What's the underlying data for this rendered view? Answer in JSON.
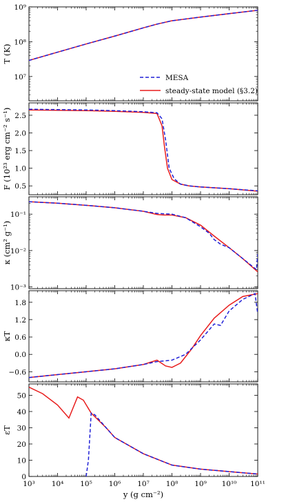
{
  "chart_data": {
    "type": "line",
    "xlabel": "y (g cm⁻²)",
    "x_scale": "log",
    "xlim": [
      1000,
      100000000000
    ],
    "x_ticks": [
      1000,
      10000,
      100000,
      1000000,
      10000000,
      100000000,
      1000000000,
      10000000000,
      100000000000
    ],
    "x_tick_labels": [
      "10³",
      "10⁴",
      "10⁵",
      "10⁶",
      "10⁷",
      "10⁸",
      "10⁹",
      "10¹⁰",
      "10¹¹"
    ],
    "legend": {
      "placement": "inside lower-right of top panel",
      "entries": [
        "MESA",
        "steady-state model (§3.2)"
      ]
    },
    "series_style": [
      {
        "name": "MESA",
        "color": "#1f1fd6",
        "dash": "dashed"
      },
      {
        "name": "steady-state model (§3.2)",
        "color": "#e81c1c",
        "dash": "solid"
      }
    ],
    "panels": [
      {
        "id": "T",
        "ylabel": "T (K)",
        "y_scale": "log",
        "ylim": [
          2000000,
          1000000000
        ],
        "y_ticks": [
          10000000,
          100000000,
          1000000000
        ],
        "y_tick_labels": [
          "10⁷",
          "10⁸",
          "10⁹"
        ],
        "series": [
          {
            "name": "MESA",
            "x": [
              1000,
              10000,
              100000,
              1000000,
              10000000,
              30000000,
              100000000,
              1000000000,
              10000000000,
              100000000000
            ],
            "y": [
              29000000,
              50000000,
              86000000,
              145000000,
              250000000,
              320000000,
              400000000,
              510000000,
              640000000,
              800000000
            ]
          },
          {
            "name": "steady-state model (§3.2)",
            "x": [
              1000,
              10000,
              100000,
              1000000,
              10000000,
              30000000,
              100000000,
              1000000000,
              10000000000,
              100000000000
            ],
            "y": [
              29000000,
              50000000,
              86000000,
              145000000,
              250000000,
              320000000,
              400000000,
              510000000,
              640000000,
              800000000
            ]
          }
        ]
      },
      {
        "id": "F",
        "ylabel": "F (10²³ erg cm⁻² s⁻¹)",
        "y_scale": "linear",
        "ylim": [
          0.25,
          2.85
        ],
        "y_ticks": [
          0.5,
          1.0,
          1.5,
          2.0,
          2.5
        ],
        "y_tick_labels": [
          "0.5",
          "1.0",
          "1.5",
          "2.0",
          "2.5"
        ],
        "series": [
          {
            "name": "MESA",
            "x": [
              1000,
              10000,
              100000,
              1000000,
              10000000,
              30000000,
              45000000,
              60000000,
              80000000,
              120000000,
              200000000,
              400000000,
              1000000000,
              10000000000,
              100000000000
            ],
            "y": [
              2.67,
              2.66,
              2.65,
              2.63,
              2.6,
              2.57,
              2.4,
              1.8,
              1.0,
              0.7,
              0.55,
              0.5,
              0.47,
              0.42,
              0.36
            ]
          },
          {
            "name": "steady-state model (§3.2)",
            "x": [
              1000,
              10000,
              100000,
              1000000,
              10000000,
              30000000,
              45000000,
              55000000,
              70000000,
              100000000,
              200000000,
              400000000,
              1000000000,
              10000000000,
              100000000000
            ],
            "y": [
              2.65,
              2.64,
              2.63,
              2.61,
              2.58,
              2.55,
              2.2,
              1.6,
              1.0,
              0.68,
              0.55,
              0.5,
              0.47,
              0.42,
              0.35
            ]
          }
        ]
      },
      {
        "id": "kappa",
        "ylabel": "κ (cm² g⁻¹)",
        "y_scale": "log",
        "ylim": [
          0.0009,
          0.3
        ],
        "y_ticks": [
          0.001,
          0.01,
          0.1
        ],
        "y_tick_labels": [
          "10⁻³",
          "10⁻²",
          "10⁻¹"
        ],
        "series": [
          {
            "name": "MESA",
            "x": [
              1000,
              10000,
              100000,
              1000000,
              10000000,
              30000000,
              100000000,
              300000000,
              1000000000,
              2000000000,
              3000000000,
              5000000000,
              10000000000,
              30000000000,
              90000000000,
              100000000000
            ],
            "y": [
              0.22,
              0.2,
              0.175,
              0.15,
              0.12,
              0.105,
              0.1,
              0.08,
              0.045,
              0.03,
              0.02,
              0.015,
              0.012,
              0.006,
              0.003,
              0.008
            ]
          },
          {
            "name": "steady-state model (§3.2)",
            "x": [
              1000,
              10000,
              100000,
              1000000,
              10000000,
              30000000,
              50000000,
              100000000,
              300000000,
              1000000000,
              3000000000,
              10000000000,
              30000000000,
              100000000000
            ],
            "y": [
              0.22,
              0.2,
              0.175,
              0.15,
              0.12,
              0.098,
              0.095,
              0.095,
              0.08,
              0.05,
              0.025,
              0.012,
              0.006,
              0.0026
            ]
          }
        ]
      },
      {
        "id": "kappaT",
        "ylabel": "κT",
        "y_scale": "linear",
        "ylim": [
          -0.95,
          2.2
        ],
        "y_ticks": [
          -0.6,
          0.0,
          0.6,
          1.2,
          1.8
        ],
        "y_tick_labels": [
          "−0.6",
          "0.0",
          "0.6",
          "1.2",
          "1.8"
        ],
        "series": [
          {
            "name": "MESA",
            "x": [
              1000,
              10000,
              100000,
              1000000,
              10000000,
              30000000,
              100000000,
              300000000,
              1000000000,
              3000000000,
              5000000000,
              10000000000,
              30000000000,
              80000000000,
              100000000000
            ],
            "y": [
              -0.8,
              -0.7,
              -0.6,
              -0.5,
              -0.35,
              -0.25,
              -0.2,
              0.0,
              0.5,
              1.05,
              1.0,
              1.5,
              1.9,
              2.1,
              1.4
            ]
          },
          {
            "name": "steady-state model (§3.2)",
            "x": [
              1000,
              10000,
              100000,
              1000000,
              10000000,
              30000000,
              60000000,
              100000000,
              200000000,
              500000000,
              1000000000,
              3000000000,
              10000000000,
              30000000000,
              100000000000
            ],
            "y": [
              -0.8,
              -0.7,
              -0.6,
              -0.5,
              -0.35,
              -0.2,
              -0.4,
              -0.45,
              -0.3,
              0.2,
              0.65,
              1.25,
              1.7,
              2.0,
              2.1
            ]
          }
        ]
      },
      {
        "id": "epsT",
        "ylabel": "εT",
        "y_scale": "linear",
        "ylim": [
          0,
          57
        ],
        "y_ticks": [
          0,
          10,
          20,
          30,
          40,
          50
        ],
        "y_tick_labels": [
          "0",
          "10",
          "20",
          "30",
          "40",
          "50"
        ],
        "series": [
          {
            "name": "MESA",
            "x": [
              100000,
              120000,
              140000,
              150000,
              200000,
              500000,
              1000000,
              10000000,
              100000000,
              1000000000,
              10000000000,
              100000000000
            ],
            "y": [
              0,
              10,
              30,
              39,
              38,
              30,
              24,
              14,
              7,
              4.5,
              3,
              1.5
            ]
          },
          {
            "name": "steady-state model (§3.2)",
            "x": [
              1000,
              3000,
              10000,
              25000,
              50000,
              80000,
              150000,
              500000,
              1000000,
              10000000,
              100000000,
              1000000000,
              10000000000,
              100000000000
            ],
            "y": [
              55,
              51,
              44,
              36,
              49,
              47,
              39,
              30,
              24,
              14,
              7,
              4.5,
              3,
              1.5
            ]
          }
        ]
      }
    ]
  }
}
